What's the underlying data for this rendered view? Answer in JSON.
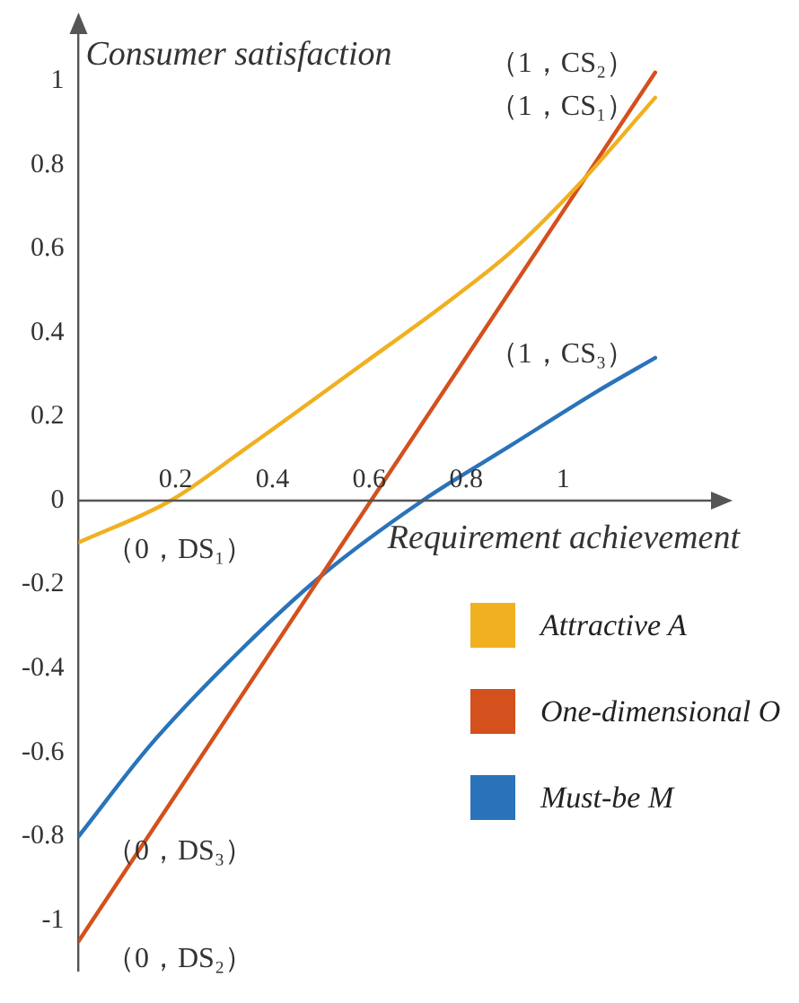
{
  "chart_data": {
    "type": "line",
    "xlabel": "Requirement achievement",
    "ylabel": "Consumer satisfaction",
    "xlim": [
      0,
      1.32
    ],
    "xticks": [
      0.2,
      0.4,
      0.6,
      0.8,
      1
    ],
    "ylim": [
      -1.12,
      1.12
    ],
    "yticks": [
      -1,
      -0.8,
      -0.6,
      -0.4,
      -0.2,
      0,
      0.2,
      0.4,
      0.6,
      0.8,
      1
    ],
    "series": [
      {
        "name": "Attractive A",
        "color": "#f0b020",
        "x": [
          0,
          0.19,
          0.34,
          0.58,
          0.77,
          0.89,
          1.03,
          1.19
        ],
        "values": [
          -0.1,
          0,
          0.12,
          0.32,
          0.48,
          0.59,
          0.75,
          0.96
        ]
      },
      {
        "name": "One-dimensional O",
        "color": "#d4501c",
        "x": [
          0,
          1.19
        ],
        "values": [
          -1.05,
          1.02
        ]
      },
      {
        "name": "Must-be M",
        "color": "#2a73ba",
        "x": [
          0,
          0.15,
          0.34,
          0.5,
          0.71,
          0.89,
          1.07,
          1.19
        ],
        "values": [
          -0.8,
          -0.58,
          -0.35,
          -0.18,
          0,
          0.13,
          0.26,
          0.34
        ]
      }
    ],
    "annotations": [
      "（1，CS₂）",
      "（1，CS₁）",
      "（1，CS₃）",
      "（0，DS₁）",
      "（0，DS₃）",
      "（0，DS₂）"
    ],
    "legend": "right",
    "grid": false,
    "marker": "none",
    "line_style": "solid"
  }
}
